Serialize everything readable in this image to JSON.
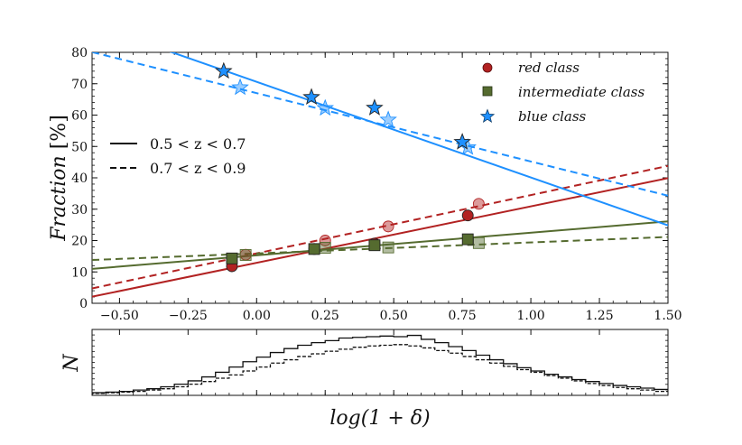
{
  "chart_data": [
    {
      "type": "scatter",
      "panel": "top",
      "ylabel_main": "Fraction",
      "ylabel_unit": "[%]",
      "xlim": [
        -0.6,
        1.5
      ],
      "ylim": [
        0,
        80
      ],
      "xticks": [
        -0.5,
        -0.25,
        0.0,
        0.25,
        0.5,
        0.75,
        1.0,
        1.25,
        1.5
      ],
      "xtick_labels": [
        "−0.50",
        "−0.25",
        "0.00",
        "0.25",
        "0.50",
        "0.75",
        "1.00",
        "1.25",
        "1.50"
      ],
      "yticks": [
        0,
        10,
        20,
        30,
        40,
        50,
        60,
        70,
        80
      ],
      "ytick_labels": [
        "0",
        "10",
        "20",
        "30",
        "40",
        "50",
        "60",
        "70",
        "80"
      ],
      "colors": {
        "red": "#b22222",
        "intermediate": "#556b2f",
        "blue": "#1e90ff"
      },
      "legend_markers": [
        {
          "label": "red class",
          "marker": "circle",
          "color": "#b22222"
        },
        {
          "label": "intermediate class",
          "marker": "square",
          "color": "#556b2f"
        },
        {
          "label": "blue class",
          "marker": "star",
          "color": "#1e90ff"
        }
      ],
      "legend_lines": [
        {
          "label": "0.5 < z < 0.7",
          "linestyle": "solid"
        },
        {
          "label": "0.7 < z < 0.9",
          "linestyle": "dashed"
        }
      ],
      "series": [
        {
          "name": "red class, 0.5<z<0.7",
          "class": "red",
          "redshift": "low",
          "marker": "circle",
          "x": [
            -0.09,
            0.21,
            0.43,
            0.77
          ],
          "y": [
            11.8,
            17.3,
            19.0,
            28.0
          ],
          "fit": {
            "slope": 18.0,
            "intercept": 12.9,
            "linestyle": "solid"
          }
        },
        {
          "name": "red class, 0.7<z<0.9",
          "class": "red",
          "redshift": "high",
          "marker": "circle",
          "x": [
            -0.04,
            0.25,
            0.48,
            0.81
          ],
          "y": [
            15.5,
            20.0,
            24.5,
            31.7
          ],
          "fit": {
            "slope": 18.6,
            "intercept": 15.9,
            "linestyle": "dashed"
          }
        },
        {
          "name": "intermediate class, 0.5<z<0.7",
          "class": "intermediate",
          "redshift": "low",
          "marker": "square",
          "x": [
            -0.09,
            0.21,
            0.43,
            0.77
          ],
          "y": [
            14.3,
            17.3,
            18.5,
            20.4
          ],
          "fit": {
            "slope": 7.2,
            "intercept": 15.3,
            "linestyle": "solid"
          }
        },
        {
          "name": "intermediate class, 0.7<z<0.9",
          "class": "intermediate",
          "redshift": "high",
          "marker": "square",
          "x": [
            -0.04,
            0.25,
            0.48,
            0.81
          ],
          "y": [
            15.4,
            17.7,
            17.8,
            19.2
          ],
          "fit": {
            "slope": 3.5,
            "intercept": 15.9,
            "linestyle": "dashed"
          }
        },
        {
          "name": "blue class, 0.5<z<0.7",
          "class": "blue",
          "redshift": "low",
          "marker": "star",
          "x": [
            -0.12,
            0.2,
            0.43,
            0.75
          ],
          "y": [
            74.0,
            65.7,
            62.3,
            51.4
          ],
          "fit": {
            "slope": -30.5,
            "intercept": 70.6,
            "linestyle": "solid"
          }
        },
        {
          "name": "blue class, 0.7<z<0.9",
          "class": "blue",
          "redshift": "high",
          "marker": "star",
          "x": [
            -0.06,
            0.25,
            0.48,
            0.77
          ],
          "y": [
            68.8,
            62.2,
            58.5,
            49.7
          ],
          "fit": {
            "slope": -21.8,
            "intercept": 67.0,
            "linestyle": "dashed"
          }
        }
      ]
    },
    {
      "type": "histogram",
      "panel": "bottom",
      "xlabel": "log(1 + δ)",
      "ylabel": "N",
      "xlim": [
        -0.6,
        1.5
      ],
      "ylim": [
        0,
        1.0
      ],
      "bin_start": -0.6,
      "bin_width": 0.05,
      "series": [
        {
          "name": "0.5 < z < 0.7",
          "linestyle": "solid",
          "values": [
            0.04,
            0.05,
            0.06,
            0.08,
            0.1,
            0.13,
            0.17,
            0.22,
            0.28,
            0.35,
            0.43,
            0.51,
            0.58,
            0.65,
            0.71,
            0.76,
            0.8,
            0.83,
            0.87,
            0.88,
            0.89,
            0.9,
            0.89,
            0.91,
            0.85,
            0.8,
            0.74,
            0.68,
            0.61,
            0.54,
            0.48,
            0.42,
            0.37,
            0.32,
            0.28,
            0.24,
            0.21,
            0.18,
            0.15,
            0.13,
            0.11,
            0.09
          ]
        },
        {
          "name": "0.7 < z < 0.9",
          "linestyle": "dashed",
          "values": [
            0.03,
            0.04,
            0.05,
            0.06,
            0.08,
            0.1,
            0.13,
            0.17,
            0.21,
            0.26,
            0.31,
            0.37,
            0.43,
            0.49,
            0.54,
            0.59,
            0.63,
            0.67,
            0.7,
            0.73,
            0.75,
            0.76,
            0.77,
            0.75,
            0.72,
            0.68,
            0.64,
            0.59,
            0.54,
            0.49,
            0.44,
            0.39,
            0.35,
            0.3,
            0.26,
            0.22,
            0.18,
            0.15,
            0.12,
            0.1,
            0.08,
            0.06
          ]
        }
      ]
    }
  ]
}
